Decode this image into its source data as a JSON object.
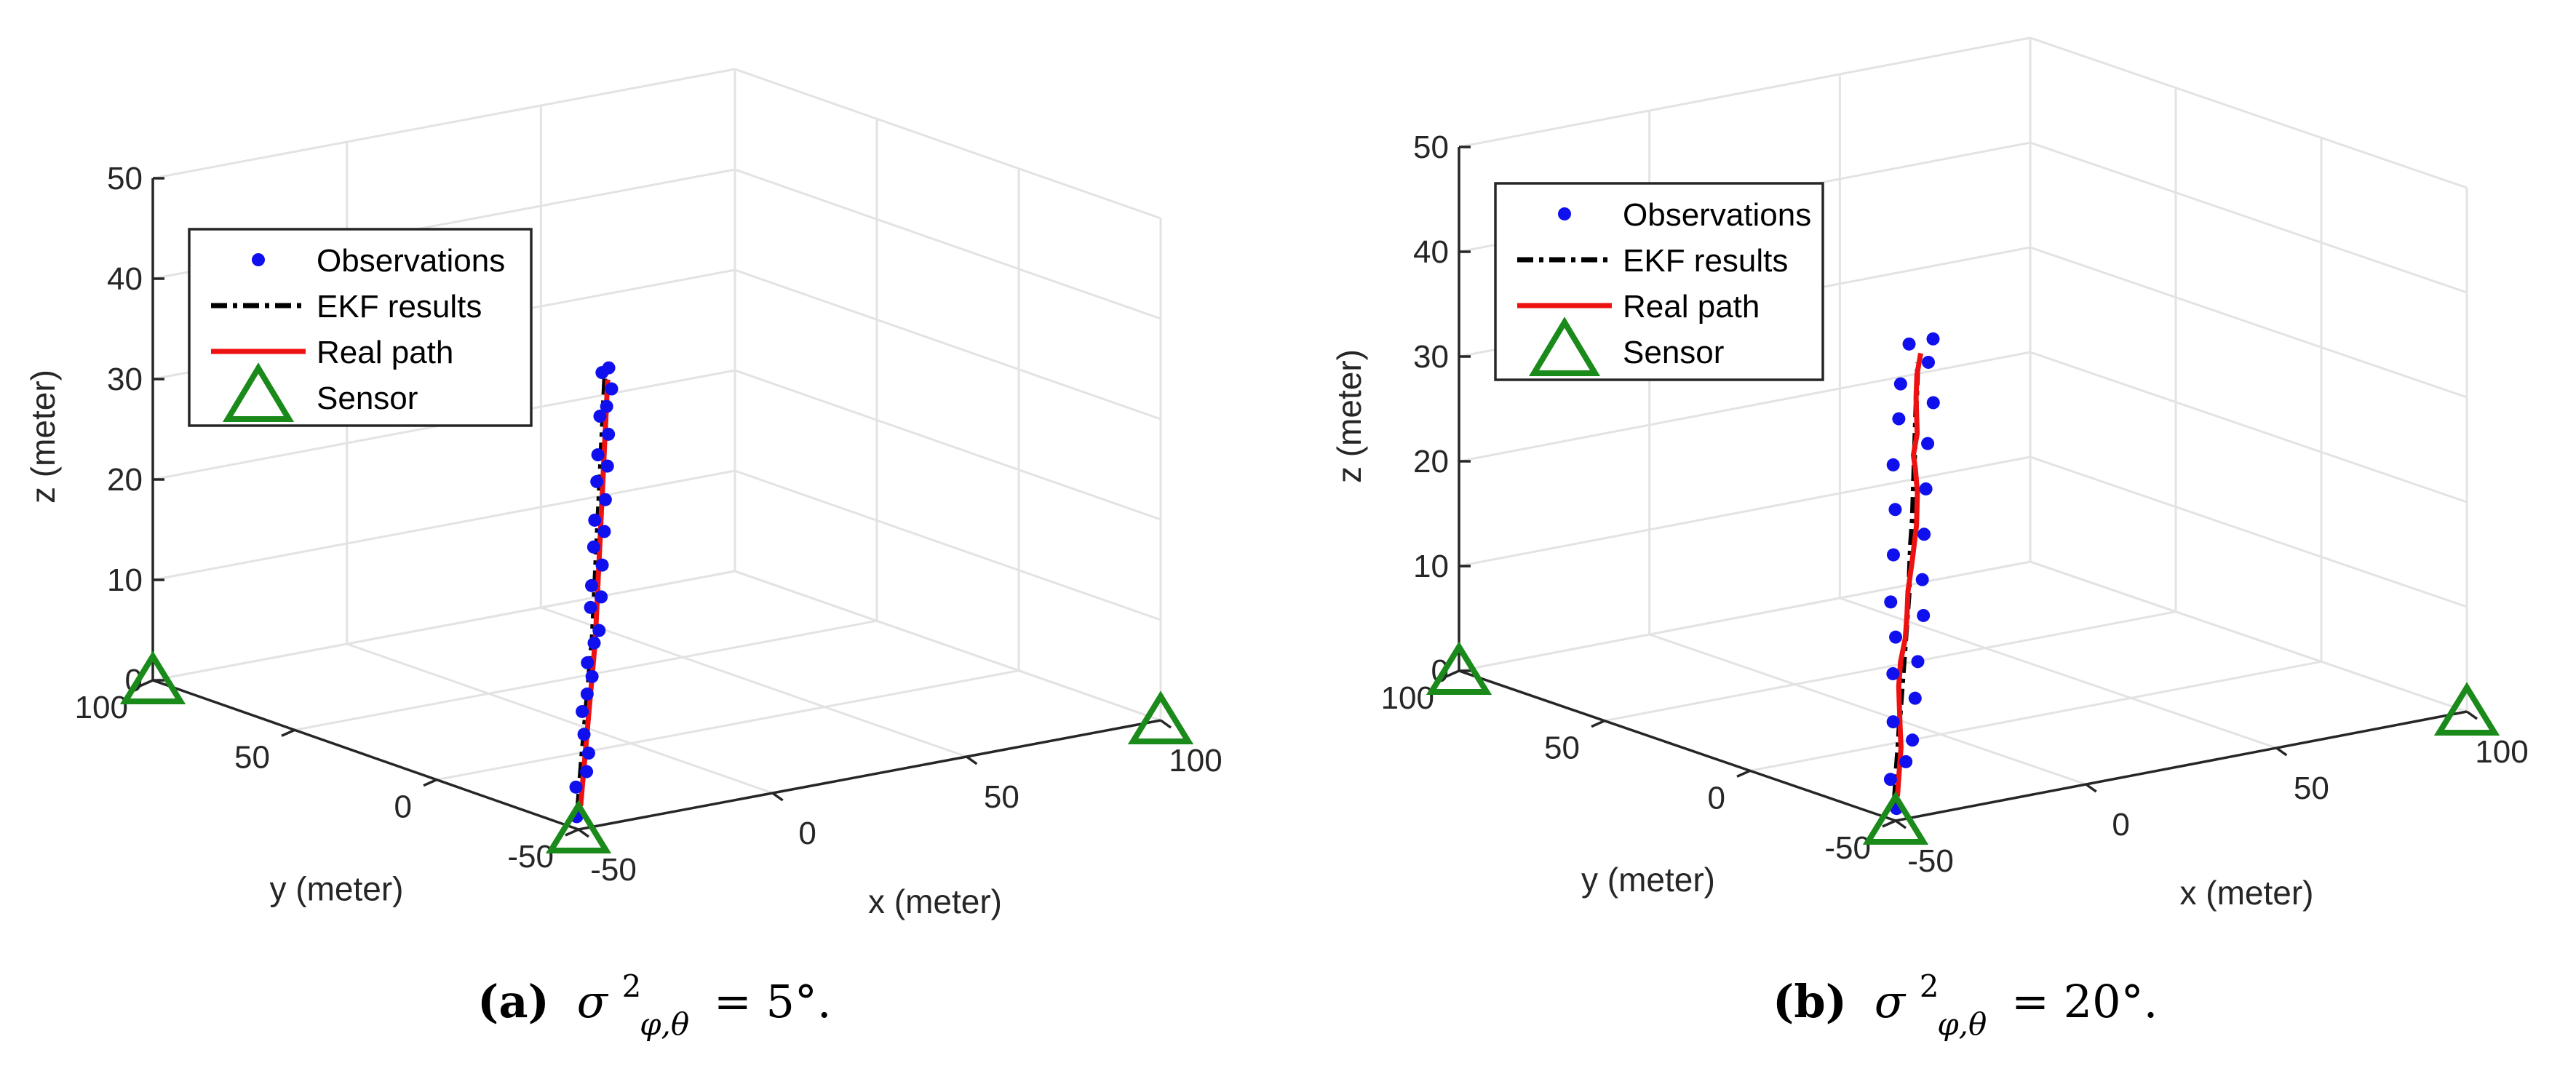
{
  "figure": {
    "panels": [
      {
        "id": "a",
        "caption_letter": "(a)",
        "caption_value": "= 5°.",
        "caption_symbol": "σ",
        "caption_sup": "2",
        "caption_sub": "φ,θ"
      },
      {
        "id": "b",
        "caption_letter": "(b)",
        "caption_value": "= 20°.",
        "caption_symbol": "σ",
        "caption_sup": "2",
        "caption_sub": "φ,θ"
      }
    ]
  },
  "chart_data": [
    {
      "type": "scatter",
      "title": "",
      "xlabel": "x (meter)",
      "ylabel": "y (meter)",
      "zlabel": "z (meter)",
      "xlim": [
        -50,
        100
      ],
      "ylim": [
        -50,
        100
      ],
      "zlim": [
        0,
        50
      ],
      "xticks": [
        -50,
        0,
        50,
        100
      ],
      "yticks": [
        -50,
        0,
        50,
        100
      ],
      "zticks": [
        0,
        10,
        20,
        30,
        40,
        50
      ],
      "legend": {
        "position": "top-left",
        "entries": [
          "Observations",
          "EKF results",
          "Real path",
          "Sensor"
        ]
      },
      "colors": {
        "observations": "#1010ee",
        "ekf": "#000000",
        "real": "#ee1111",
        "sensor": "#1a8a1a"
      },
      "sensors": [
        {
          "x": -50,
          "y": 100,
          "z": 0
        },
        {
          "x": -50,
          "y": -50,
          "z": 0
        },
        {
          "x": 100,
          "y": -50,
          "z": 0
        }
      ],
      "series": [
        {
          "name": "Real path",
          "points": [
            [
              -48,
              -48,
              2
            ],
            [
              -46,
              -46,
              4
            ],
            [
              -44,
              -44,
              6
            ],
            [
              -42,
              -42,
              8
            ],
            [
              -40,
              -40,
              10
            ],
            [
              -38,
              -38,
              12
            ],
            [
              -36,
              -36,
              14
            ],
            [
              -34,
              -34,
              16
            ],
            [
              -33,
              -33,
              18
            ],
            [
              -32,
              -32,
              20
            ],
            [
              -31,
              -31,
              22
            ],
            [
              -30,
              -30,
              24
            ],
            [
              -29,
              -29,
              26
            ],
            [
              -28,
              -28,
              28
            ],
            [
              -27,
              -27,
              30
            ],
            [
              -26,
              -26,
              32
            ],
            [
              -25,
              -25,
              34
            ],
            [
              -24,
              -24,
              36
            ],
            [
              -23,
              -23,
              38
            ],
            [
              -22,
              -22,
              40
            ]
          ]
        },
        {
          "name": "EKF results",
          "points": [
            [
              -48,
              -47,
              1.5
            ],
            [
              -46,
              -45,
              3.8
            ],
            [
              -44,
              -43,
              6.2
            ],
            [
              -42,
              -41,
              8.1
            ],
            [
              -40,
              -39,
              10.2
            ],
            [
              -38,
              -37,
              12.1
            ],
            [
              -36,
              -35,
              14.3
            ],
            [
              -34,
              -33,
              16.2
            ],
            [
              -33,
              -32,
              18.1
            ],
            [
              -32,
              -31,
              20.2
            ],
            [
              -31,
              -30,
              22.1
            ],
            [
              -30,
              -29,
              24.3
            ],
            [
              -29,
              -28,
              26.2
            ],
            [
              -28,
              -27,
              28.1
            ],
            [
              -27,
              -26,
              30.2
            ],
            [
              -26,
              -25,
              32.1
            ],
            [
              -25,
              -24,
              34.2
            ],
            [
              -24,
              -23,
              36.1
            ],
            [
              -23,
              -22,
              38.2
            ],
            [
              -22,
              -21,
              40.1
            ]
          ]
        },
        {
          "name": "Observations",
          "points": [
            [
              -49,
              -48,
              1
            ],
            [
              -47,
              -45,
              3.5
            ],
            [
              -45,
              -46,
              5
            ],
            [
              -43,
              -44,
              6.5
            ],
            [
              -42,
              -41,
              8
            ],
            [
              -41,
              -39,
              10
            ],
            [
              -39,
              -38,
              11.5
            ],
            [
              -37,
              -37,
              13
            ],
            [
              -36,
              -34,
              14
            ],
            [
              -35,
              -35,
              16
            ],
            [
              -33,
              -34,
              17
            ],
            [
              -33,
              -31,
              19
            ],
            [
              -31,
              -32,
              20
            ],
            [
              -32,
              -30,
              21
            ],
            [
              -30,
              -31,
              23
            ],
            [
              -30,
              -28,
              24.5
            ],
            [
              -28,
              -29,
              26
            ],
            [
              -29,
              -27,
              27
            ],
            [
              -27,
              -28,
              29
            ],
            [
              -27,
              -25,
              30.5
            ],
            [
              -25,
              -26,
              32
            ],
            [
              -26,
              -24,
              33
            ],
            [
              -24,
              -25,
              35
            ],
            [
              -24,
              -22,
              36.5
            ],
            [
              -23,
              -23,
              37.5
            ],
            [
              -21,
              -22,
              39
            ],
            [
              -22,
              -20,
              40.5
            ],
            [
              -21,
              -21,
              41
            ]
          ]
        }
      ]
    },
    {
      "type": "scatter",
      "title": "",
      "xlabel": "x (meter)",
      "ylabel": "y (meter)",
      "zlabel": "z (meter)",
      "xlim": [
        -50,
        100
      ],
      "ylim": [
        -50,
        100
      ],
      "zlim": [
        0,
        50
      ],
      "xticks": [
        -50,
        0,
        50,
        100
      ],
      "yticks": [
        -50,
        0,
        50,
        100
      ],
      "zticks": [
        0,
        10,
        20,
        30,
        40,
        50
      ],
      "legend": {
        "position": "top-left",
        "entries": [
          "Observations",
          "EKF results",
          "Real path",
          "Sensor"
        ]
      },
      "colors": {
        "observations": "#1010ee",
        "ekf": "#000000",
        "real": "#ee1111",
        "sensor": "#1a8a1a"
      },
      "sensors": [
        {
          "x": -50,
          "y": 100,
          "z": 0
        },
        {
          "x": -50,
          "y": -50,
          "z": 0
        },
        {
          "x": 100,
          "y": -50,
          "z": 0
        }
      ],
      "series": [
        {
          "name": "Real path",
          "points": [
            [
              -48,
              -48,
              2
            ],
            [
              -46,
              -46,
              4
            ],
            [
              -44,
              -44,
              6
            ],
            [
              -42,
              -41,
              8
            ],
            [
              -40,
              -38,
              11
            ],
            [
              -38,
              -36,
              13
            ],
            [
              -36,
              -35,
              15
            ],
            [
              -34,
              -33,
              17
            ],
            [
              -33,
              -32,
              19
            ],
            [
              -31,
              -31,
              22
            ],
            [
              -30,
              -31,
              25
            ],
            [
              -29,
              -30,
              28
            ],
            [
              -28,
              -28,
              30
            ],
            [
              -27,
              -26,
              31
            ],
            [
              -26,
              -26,
              33
            ],
            [
              -24,
              -23,
              36
            ],
            [
              -23,
              -22,
              38
            ],
            [
              -22,
              -22,
              40
            ]
          ]
        },
        {
          "name": "EKF results",
          "points": [
            [
              -48,
              -47,
              1.5
            ],
            [
              -46,
              -45,
              4
            ],
            [
              -44,
              -43,
              6
            ],
            [
              -42,
              -41,
              8.5
            ],
            [
              -40,
              -39,
              10.5
            ],
            [
              -38,
              -37,
              12.5
            ],
            [
              -36,
              -35,
              14.5
            ],
            [
              -34,
              -33,
              16.5
            ],
            [
              -32,
              -31,
              18.5
            ],
            [
              -31,
              -30,
              21
            ],
            [
              -30,
              -29,
              23
            ],
            [
              -28,
              -27,
              25
            ],
            [
              -27,
              -26,
              27.5
            ],
            [
              -26,
              -25,
              30
            ],
            [
              -25,
              -24,
              32.5
            ],
            [
              -24,
              -23,
              35
            ],
            [
              -23,
              -22,
              37
            ],
            [
              -22,
              -21,
              39
            ]
          ]
        },
        {
          "name": "Observations",
          "points": [
            [
              -49,
              -49,
              1
            ],
            [
              -46,
              -43,
              3
            ],
            [
              -45,
              -47,
              5
            ],
            [
              -41,
              -44,
              6.5
            ],
            [
              -43,
              -40,
              8
            ],
            [
              -38,
              -41,
              10
            ],
            [
              -40,
              -36,
              12
            ],
            [
              -35,
              -38,
              13
            ],
            [
              -37,
              -33,
              15
            ],
            [
              -32,
              -36,
              17
            ],
            [
              -36,
              -30,
              18
            ],
            [
              -30,
              -33,
              20
            ],
            [
              -33,
              -27,
              22
            ],
            [
              -28,
              -31,
              24
            ],
            [
              -31,
              -25,
              26
            ],
            [
              -26,
              -29,
              28
            ],
            [
              -30,
              -23,
              30
            ],
            [
              -24,
              -27,
              32
            ],
            [
              -27,
              -21,
              34
            ],
            [
              -21,
              -25,
              35.5
            ],
            [
              -25,
              -19,
              37
            ],
            [
              -20,
              -22,
              39
            ],
            [
              -22,
              -18,
              40.5
            ],
            [
              -18,
              -21,
              41
            ]
          ]
        }
      ]
    }
  ]
}
